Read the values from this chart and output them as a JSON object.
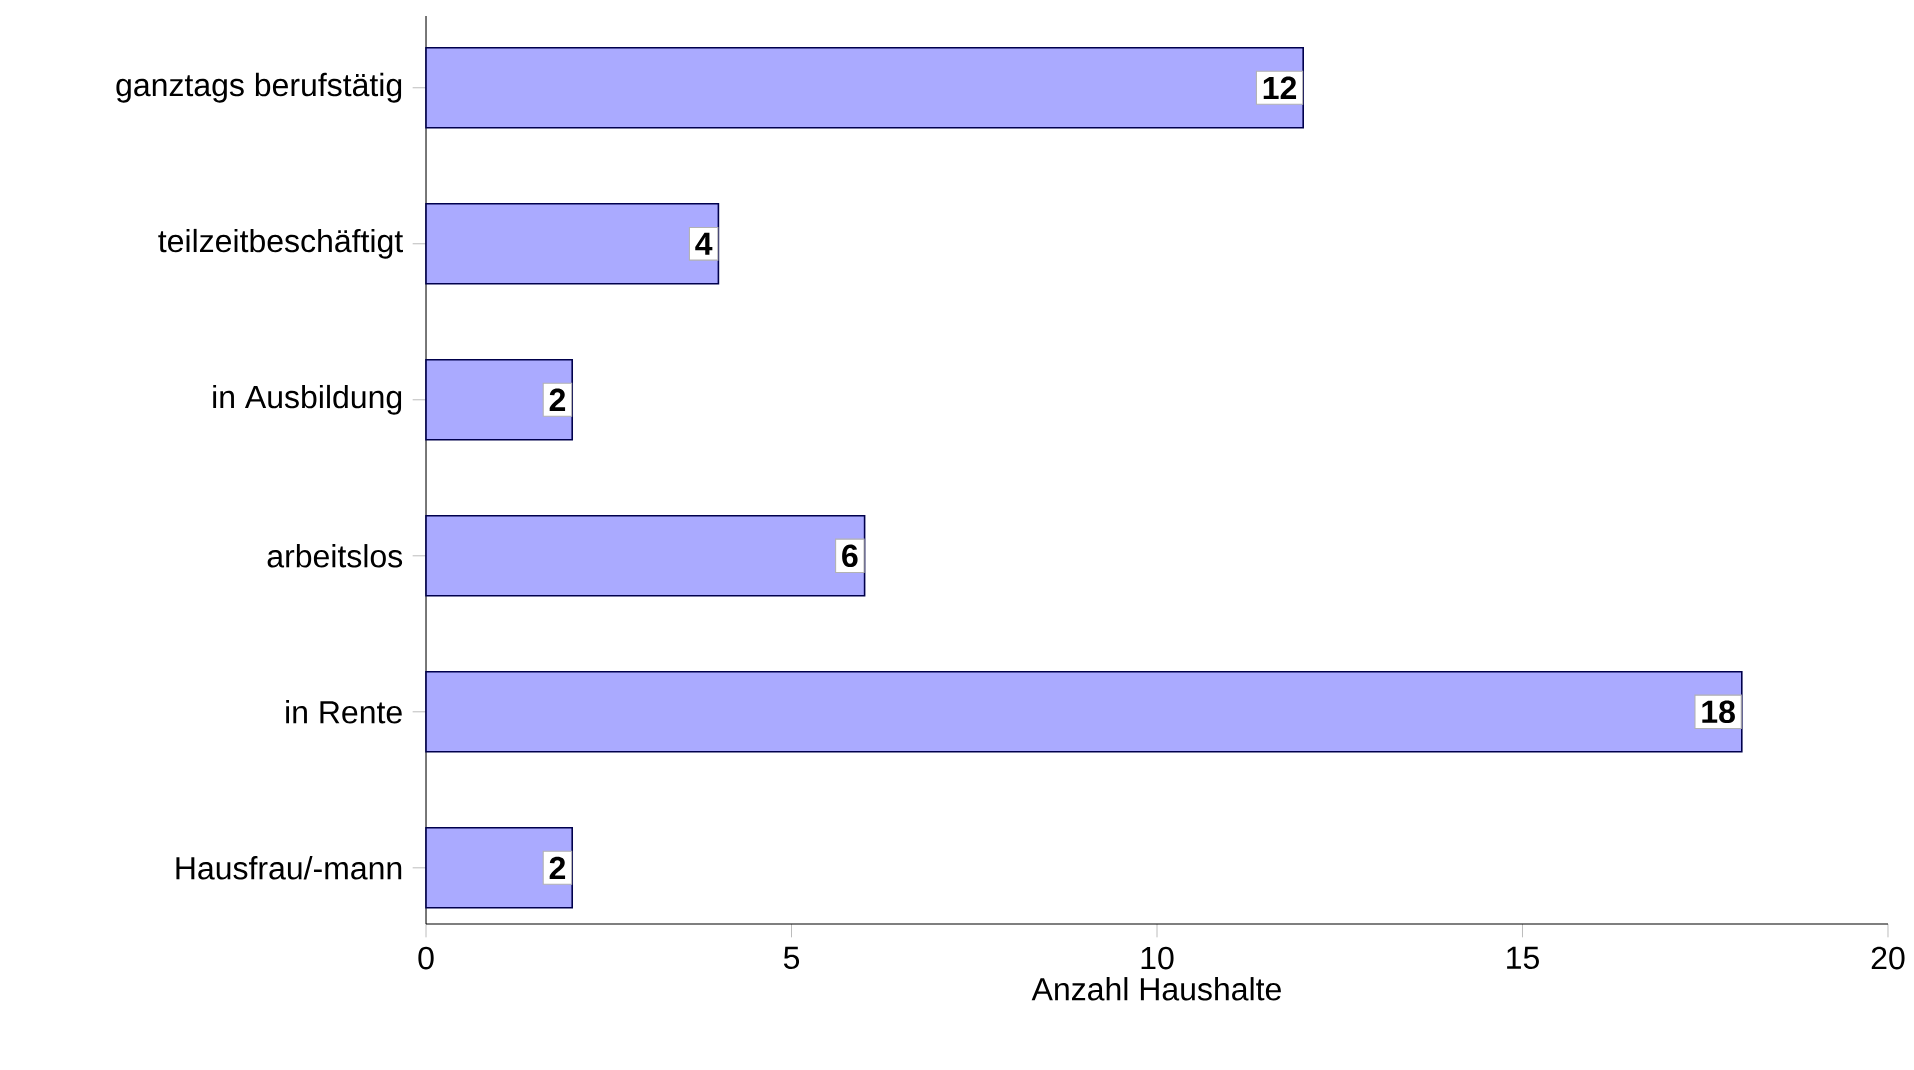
{
  "chart_data": {
    "type": "bar",
    "orientation": "horizontal",
    "xlabel": "Anzahl Haushalte",
    "categories": [
      "ganztags berufstätig",
      "teilzeitbeschäftigt",
      "in Ausbildung",
      "arbeitslos",
      "in Rente",
      "Hausfrau/-mann"
    ],
    "values": [
      12,
      4,
      2,
      6,
      18,
      2
    ],
    "color": "#aaaaff",
    "xlim": [
      0,
      20
    ],
    "xticks": [
      0,
      5,
      10,
      15,
      20
    ],
    "data_labels": true,
    "grid": false
  }
}
